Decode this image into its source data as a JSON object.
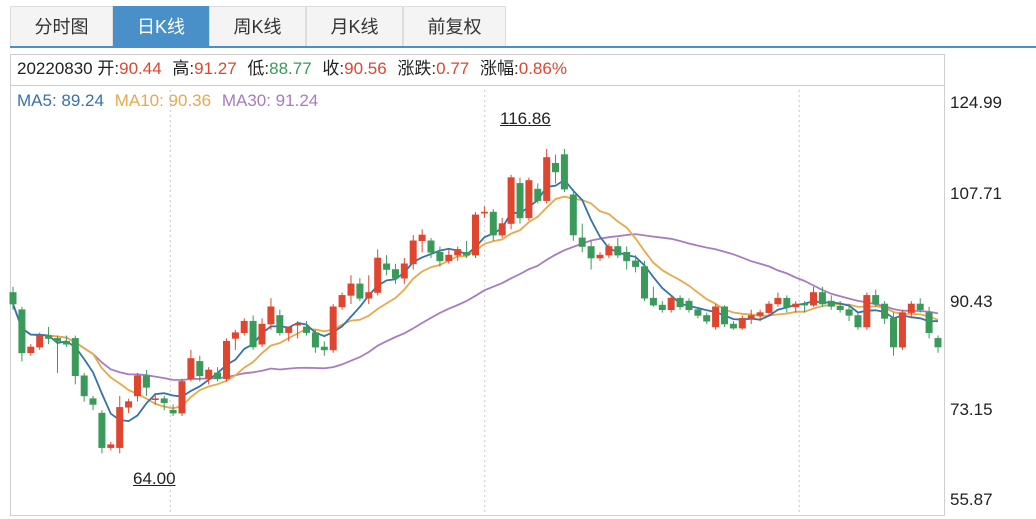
{
  "tabs": [
    {
      "label": "分时图",
      "active": false
    },
    {
      "label": "日K线",
      "active": true
    },
    {
      "label": "周K线",
      "active": false
    },
    {
      "label": "月K线",
      "active": false
    },
    {
      "label": "前复权",
      "active": false
    }
  ],
  "info": {
    "date": "20220830",
    "open_label": "开:",
    "open": "90.44",
    "high_label": "高:",
    "high": "91.27",
    "low_label": "低:",
    "low": "88.77",
    "close_label": "收:",
    "close": "90.56",
    "change_label": "涨跌:",
    "change": "0.77",
    "pct_label": "涨幅:",
    "pct": "0.86%"
  },
  "ma_legend": {
    "ma5": "MA5: 89.24",
    "ma10": "MA10: 90.36",
    "ma30": "MA30: 91.24"
  },
  "colors": {
    "up": "#e0452f",
    "down": "#3a9a5a",
    "ma5": "#3573a8",
    "ma10": "#e8a94a",
    "ma30": "#a87cc0",
    "accent": "#4a90c8"
  },
  "chart_data": {
    "type": "candlestick",
    "ylim": [
      55.87,
      124.99
    ],
    "y_ticks": [
      "124.99",
      "107.71",
      "90.43",
      "73.15",
      "55.87"
    ],
    "annotations": {
      "max": "116.86",
      "min": "64.00"
    },
    "candles": [
      [
        92.0,
        93.0,
        89.0,
        90.0
      ],
      [
        89.0,
        89.5,
        80.0,
        81.5
      ],
      [
        81.5,
        83.0,
        81.0,
        82.5
      ],
      [
        82.5,
        85.0,
        82.0,
        84.5
      ],
      [
        84.5,
        86.0,
        83.0,
        84.0
      ],
      [
        84.0,
        84.5,
        78.0,
        83.5
      ],
      [
        83.5,
        84.5,
        82.5,
        83.0
      ],
      [
        84.0,
        84.5,
        76.0,
        77.5
      ],
      [
        77.5,
        78.0,
        73.0,
        74.0
      ],
      [
        73.5,
        74.0,
        71.5,
        72.5
      ],
      [
        71.0,
        71.5,
        64.0,
        65.0
      ],
      [
        65.0,
        66.0,
        64.5,
        65.5
      ],
      [
        65.0,
        74.0,
        64.0,
        72.0
      ],
      [
        72.0,
        73.5,
        71.0,
        73.0
      ],
      [
        74.0,
        78.0,
        73.0,
        77.5
      ],
      [
        77.5,
        78.5,
        74.0,
        75.5
      ],
      [
        73.5,
        74.5,
        72.5,
        73.5
      ],
      [
        73.5,
        74.0,
        71.5,
        72.8
      ],
      [
        71.5,
        72.5,
        70.5,
        71.0
      ],
      [
        71.0,
        77.0,
        70.5,
        76.5
      ],
      [
        77.0,
        82.0,
        76.5,
        80.5
      ],
      [
        80.0,
        81.0,
        76.5,
        77.5
      ],
      [
        77.0,
        79.0,
        76.0,
        78.5
      ],
      [
        78.0,
        79.0,
        76.5,
        77.0
      ],
      [
        77.0,
        84.0,
        76.5,
        83.5
      ],
      [
        84.0,
        85.5,
        82.0,
        85.0
      ],
      [
        85.0,
        87.5,
        84.5,
        87.0
      ],
      [
        87.0,
        88.0,
        82.0,
        82.5
      ],
      [
        83.0,
        87.5,
        82.5,
        86.5
      ],
      [
        86.5,
        91.0,
        85.5,
        89.5
      ],
      [
        88.0,
        89.0,
        84.5,
        85.0
      ],
      [
        85.0,
        86.0,
        83.5,
        86.0
      ],
      [
        86.5,
        87.0,
        84.0,
        86.5
      ],
      [
        86.0,
        87.0,
        84.5,
        85.0
      ],
      [
        85.0,
        85.5,
        81.5,
        82.5
      ],
      [
        82.5,
        83.5,
        81.0,
        82.0
      ],
      [
        82.0,
        90.0,
        81.5,
        89.5
      ],
      [
        89.5,
        92.0,
        89.0,
        91.5
      ],
      [
        91.5,
        95.0,
        90.0,
        93.5
      ],
      [
        93.5,
        94.5,
        90.5,
        91.0
      ],
      [
        91.0,
        95.0,
        90.0,
        92.0
      ],
      [
        92.0,
        99.5,
        91.5,
        98.0
      ],
      [
        97.0,
        98.5,
        95.0,
        96.0
      ],
      [
        96.0,
        97.0,
        93.5,
        94.5
      ],
      [
        94.5,
        98.0,
        93.5,
        97.0
      ],
      [
        97.0,
        102.0,
        96.0,
        101.0
      ],
      [
        101.0,
        103.0,
        99.0,
        102.0
      ],
      [
        101.0,
        101.5,
        98.0,
        99.0
      ],
      [
        99.0,
        100.0,
        96.5,
        97.5
      ],
      [
        97.5,
        99.5,
        97.0,
        98.5
      ],
      [
        98.5,
        100.0,
        97.5,
        99.5
      ],
      [
        99.0,
        101.0,
        98.0,
        98.5
      ],
      [
        98.5,
        106.0,
        98.0,
        105.5
      ],
      [
        106.0,
        107.0,
        105.0,
        106.0
      ],
      [
        106.0,
        106.5,
        101.0,
        102.0
      ],
      [
        102.0,
        105.0,
        101.5,
        104.0
      ],
      [
        104.0,
        112.5,
        103.0,
        112.0
      ],
      [
        111.0,
        112.0,
        104.0,
        105.0
      ],
      [
        105.0,
        112.0,
        104.5,
        111.5
      ],
      [
        110.0,
        111.0,
        107.5,
        108.0
      ],
      [
        108.0,
        117.0,
        107.5,
        115.5
      ],
      [
        114.5,
        116.0,
        111.0,
        113.0
      ],
      [
        116.0,
        117.0,
        109.5,
        110.0
      ],
      [
        109.0,
        110.0,
        101.0,
        102.0
      ],
      [
        101.5,
        104.0,
        99.0,
        100.0
      ],
      [
        100.0,
        101.0,
        96.0,
        98.0
      ],
      [
        98.0,
        99.0,
        97.5,
        98.5
      ],
      [
        98.5,
        100.5,
        98.0,
        100.0
      ],
      [
        100.0,
        101.5,
        98.0,
        98.5
      ],
      [
        99.0,
        100.0,
        96.0,
        97.5
      ],
      [
        97.5,
        98.5,
        95.5,
        96.5
      ],
      [
        96.5,
        97.5,
        90.5,
        91.0
      ],
      [
        91.0,
        93.0,
        89.5,
        89.8
      ],
      [
        89.8,
        90.5,
        88.5,
        89.0
      ],
      [
        89.0,
        91.5,
        88.5,
        91.0
      ],
      [
        91.0,
        91.5,
        89.0,
        89.5
      ],
      [
        90.5,
        91.0,
        88.5,
        89.0
      ],
      [
        89.0,
        89.5,
        87.5,
        88.0
      ],
      [
        88.0,
        88.5,
        86.5,
        87.0
      ],
      [
        86.0,
        90.0,
        85.5,
        89.5
      ],
      [
        89.5,
        89.8,
        86.0,
        86.5
      ],
      [
        86.5,
        87.0,
        85.5,
        85.8
      ],
      [
        85.8,
        88.0,
        85.5,
        87.5
      ],
      [
        87.5,
        89.0,
        86.5,
        88.0
      ],
      [
        88.0,
        89.0,
        87.0,
        88.5
      ],
      [
        88.5,
        90.5,
        88.0,
        90.0
      ],
      [
        90.0,
        92.0,
        89.5,
        91.0
      ],
      [
        91.0,
        91.5,
        88.5,
        89.5
      ],
      [
        89.5,
        90.5,
        88.5,
        90.0
      ],
      [
        90.0,
        90.5,
        88.5,
        89.8
      ],
      [
        89.8,
        93.0,
        89.5,
        92.0
      ],
      [
        92.0,
        93.0,
        89.5,
        90.0
      ],
      [
        90.5,
        91.5,
        89.0,
        89.6
      ],
      [
        89.6,
        90.5,
        88.5,
        89.0
      ],
      [
        89.0,
        90.0,
        87.0,
        88.0
      ],
      [
        88.0,
        88.5,
        85.5,
        86.0
      ],
      [
        86.0,
        92.0,
        85.5,
        91.5
      ],
      [
        91.5,
        92.5,
        89.5,
        90.0
      ],
      [
        90.0,
        90.5,
        86.5,
        87.5
      ],
      [
        87.5,
        88.5,
        81.0,
        82.5
      ],
      [
        82.5,
        89.0,
        82.0,
        88.5
      ],
      [
        88.5,
        90.5,
        87.5,
        90.0
      ],
      [
        90.0,
        91.0,
        88.5,
        89.0
      ],
      [
        88.5,
        89.5,
        84.0,
        85.0
      ],
      [
        84.0,
        84.5,
        81.5,
        82.5
      ]
    ]
  }
}
